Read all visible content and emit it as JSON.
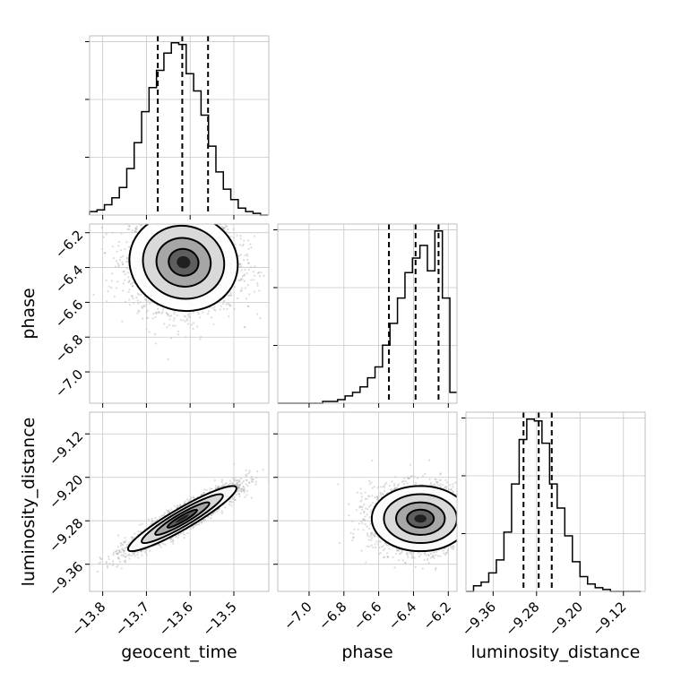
{
  "chart_data": {
    "type": "corner",
    "parameters": [
      "geocent_time",
      "phase",
      "luminosity_distance"
    ],
    "axes": {
      "geocent_time": {
        "label": "geocent_time",
        "range": [
          -13.83,
          -13.42
        ],
        "ticks": [
          -13.8,
          -13.7,
          -13.6,
          -13.5
        ],
        "tick_labels": [
          "−13.8",
          "−13.7",
          "−13.6",
          "−13.5"
        ],
        "median": -13.618,
        "q16": -13.674,
        "q84": -13.559
      },
      "phase": {
        "label": "phase",
        "range": [
          -7.18,
          -6.15
        ],
        "ticks": [
          -7.0,
          -6.8,
          -6.6,
          -6.4,
          -6.2
        ],
        "tick_labels": [
          "−7.0",
          "−6.8",
          "−6.6",
          "−6.4",
          "−6.2"
        ],
        "median": -6.388,
        "q16": -6.541,
        "q84": -6.256
      },
      "luminosity_distance": {
        "label": "luminosity_distance",
        "range": [
          -9.41,
          -9.08
        ],
        "ticks": [
          -9.36,
          -9.28,
          -9.2,
          -9.12
        ],
        "tick_labels": [
          "−9.36",
          "−9.28",
          "−9.20",
          "−9.12"
        ],
        "median": -9.276,
        "q16": -9.304,
        "q84": -9.252
      }
    },
    "histograms": {
      "geocent_time": {
        "bins": [
          -13.83,
          -13.813,
          -13.796,
          -13.779,
          -13.762,
          -13.745,
          -13.728,
          -13.711,
          -13.694,
          -13.677,
          -13.66,
          -13.643,
          -13.626,
          -13.609,
          -13.592,
          -13.575,
          -13.558,
          -13.541,
          -13.524,
          -13.507,
          -13.49,
          -13.473,
          -13.456,
          -13.439,
          -13.422
        ],
        "counts": [
          2,
          3,
          6,
          10,
          16,
          27,
          42,
          60,
          74,
          84,
          94,
          100,
          99,
          82,
          72,
          58,
          40,
          25,
          15,
          9,
          4,
          2,
          1,
          0
        ]
      },
      "phase": {
        "bins": [
          -7.18,
          -7.137,
          -7.094,
          -7.051,
          -7.008,
          -6.965,
          -6.922,
          -6.879,
          -6.836,
          -6.793,
          -6.75,
          -6.707,
          -6.664,
          -6.621,
          -6.578,
          -6.535,
          -6.492,
          -6.449,
          -6.406,
          -6.363,
          -6.32,
          -6.277,
          -6.234,
          -6.191,
          -6.15
        ],
        "counts": [
          0,
          0,
          0,
          0,
          0,
          0,
          1,
          1,
          2,
          4,
          6,
          9,
          14,
          20,
          32,
          44,
          58,
          72,
          80,
          87,
          73,
          95,
          58,
          6
        ]
      },
      "luminosity_distance": {
        "bins": [
          -9.41,
          -9.396,
          -9.382,
          -9.368,
          -9.354,
          -9.34,
          -9.326,
          -9.312,
          -9.298,
          -9.284,
          -9.27,
          -9.256,
          -9.242,
          -9.228,
          -9.214,
          -9.2,
          -9.186,
          -9.172,
          -9.158,
          -9.144,
          -9.13,
          -9.116,
          -9.102,
          -9.088
        ],
        "counts": [
          0,
          3,
          5,
          10,
          17,
          32,
          58,
          82,
          93,
          92,
          80,
          58,
          45,
          30,
          16,
          8,
          4,
          2,
          1,
          0,
          0,
          0,
          0
        ]
      }
    },
    "density_2d": [
      {
        "x_param": "geocent_time",
        "y_param": "phase",
        "center": [
          -13.615,
          -6.37
        ],
        "sigma": [
          0.062,
          0.14
        ],
        "correlation": -0.05,
        "points": 3000
      },
      {
        "x_param": "geocent_time",
        "y_param": "luminosity_distance",
        "center": [
          -13.618,
          -9.276
        ],
        "sigma": [
          0.062,
          0.03
        ],
        "correlation": 0.93,
        "points": 3000
      },
      {
        "x_param": "phase",
        "y_param": "luminosity_distance",
        "center": [
          -6.36,
          -9.276
        ],
        "sigma": [
          0.14,
          0.03
        ],
        "correlation": 0.0,
        "points": 3000
      }
    ],
    "grid": true
  }
}
